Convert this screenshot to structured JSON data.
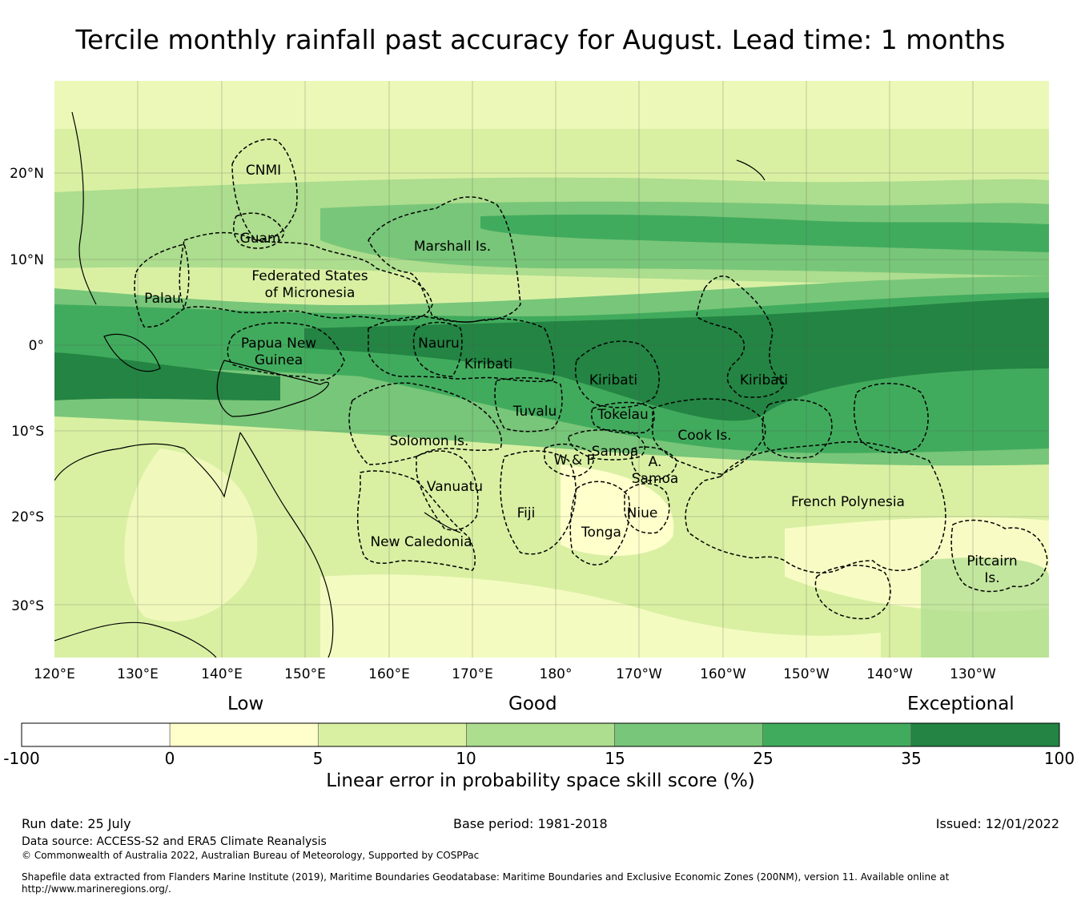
{
  "title": "Tercile monthly rainfall past accuracy for August. Lead time: 1 months",
  "map": {
    "lat_ticks": [
      "20°N",
      "10°N",
      "0°",
      "10°S",
      "20°S",
      "30°S"
    ],
    "lon_ticks": [
      "120°E",
      "130°E",
      "140°E",
      "150°E",
      "160°E",
      "170°E",
      "180°",
      "170°W",
      "160°W",
      "150°W",
      "140°W",
      "130°W"
    ],
    "regions": [
      {
        "name": "CNMI",
        "lines": [
          "CNMI"
        ]
      },
      {
        "name": "Guam",
        "lines": [
          "Guam"
        ]
      },
      {
        "name": "Marshall Is.",
        "lines": [
          "Marshall Is."
        ]
      },
      {
        "name": "Federated States of Micronesia",
        "lines": [
          "Federated States",
          "of Micronesia"
        ]
      },
      {
        "name": "Palau",
        "lines": [
          "Palau"
        ]
      },
      {
        "name": "Papua New Guinea",
        "lines": [
          "Papua New",
          "Guinea"
        ]
      },
      {
        "name": "Nauru",
        "lines": [
          "Nauru"
        ]
      },
      {
        "name": "Kiribati (Gilbert)",
        "lines": [
          "Kiribati"
        ]
      },
      {
        "name": "Kiribati (Phoenix)",
        "lines": [
          "Kiribati"
        ]
      },
      {
        "name": "Kiribati (Line)",
        "lines": [
          "Kiribati"
        ]
      },
      {
        "name": "Tuvalu",
        "lines": [
          "Tuvalu"
        ]
      },
      {
        "name": "Tokelau",
        "lines": [
          "Tokelau"
        ]
      },
      {
        "name": "Cook Is.",
        "lines": [
          "Cook Is."
        ]
      },
      {
        "name": "Solomon Is.",
        "lines": [
          "Solomon Is."
        ]
      },
      {
        "name": "Samoa",
        "lines": [
          "Samoa"
        ]
      },
      {
        "name": "W & F",
        "lines": [
          "W & F"
        ]
      },
      {
        "name": "A. Samoa",
        "lines": [
          "A.",
          "Samoa"
        ]
      },
      {
        "name": "Vanuatu",
        "lines": [
          "Vanuatu"
        ]
      },
      {
        "name": "Fiji",
        "lines": [
          "Fiji"
        ]
      },
      {
        "name": "Niue",
        "lines": [
          "Niue"
        ]
      },
      {
        "name": "Tonga",
        "lines": [
          "Tonga"
        ]
      },
      {
        "name": "French Polynesia",
        "lines": [
          "French Polynesia"
        ]
      },
      {
        "name": "New Caledonia",
        "lines": [
          "New Caledonia"
        ]
      },
      {
        "name": "Pitcairn Is.",
        "lines": [
          "Pitcairn",
          "Is."
        ]
      }
    ]
  },
  "legend": {
    "categories": [
      "Low",
      "Good",
      "Exceptional"
    ],
    "tick_labels": [
      "-100",
      "0",
      "5",
      "10",
      "15",
      "25",
      "35",
      "100"
    ],
    "colors": [
      "#ffffff",
      "#ffffcc",
      "#d9f0a3",
      "#addd8e",
      "#78c679",
      "#41ab5d",
      "#238443"
    ],
    "title": "Linear error in probability space skill score (%)"
  },
  "footer": {
    "run_date": "Run date: 25 July",
    "base_period": "Base period: 1981-2018",
    "issued": "Issued: 12/01/2022",
    "data_source": "Data source: ACCESS-S2 and ERA5 Climate Reanalysis",
    "copyright": "© Commonwealth of Australia 2022, Australian Bureau of Meteorology, Supported by COSPPac",
    "shapefile_line1": "Shapefile data extracted from Flanders Marine Institute (2019), Maritime Boundaries Geodatabase: Maritime Boundaries and Exclusive Economic Zones (200NM), version 11. Available online at",
    "shapefile_line2": "http://www.marineregions.org/."
  }
}
